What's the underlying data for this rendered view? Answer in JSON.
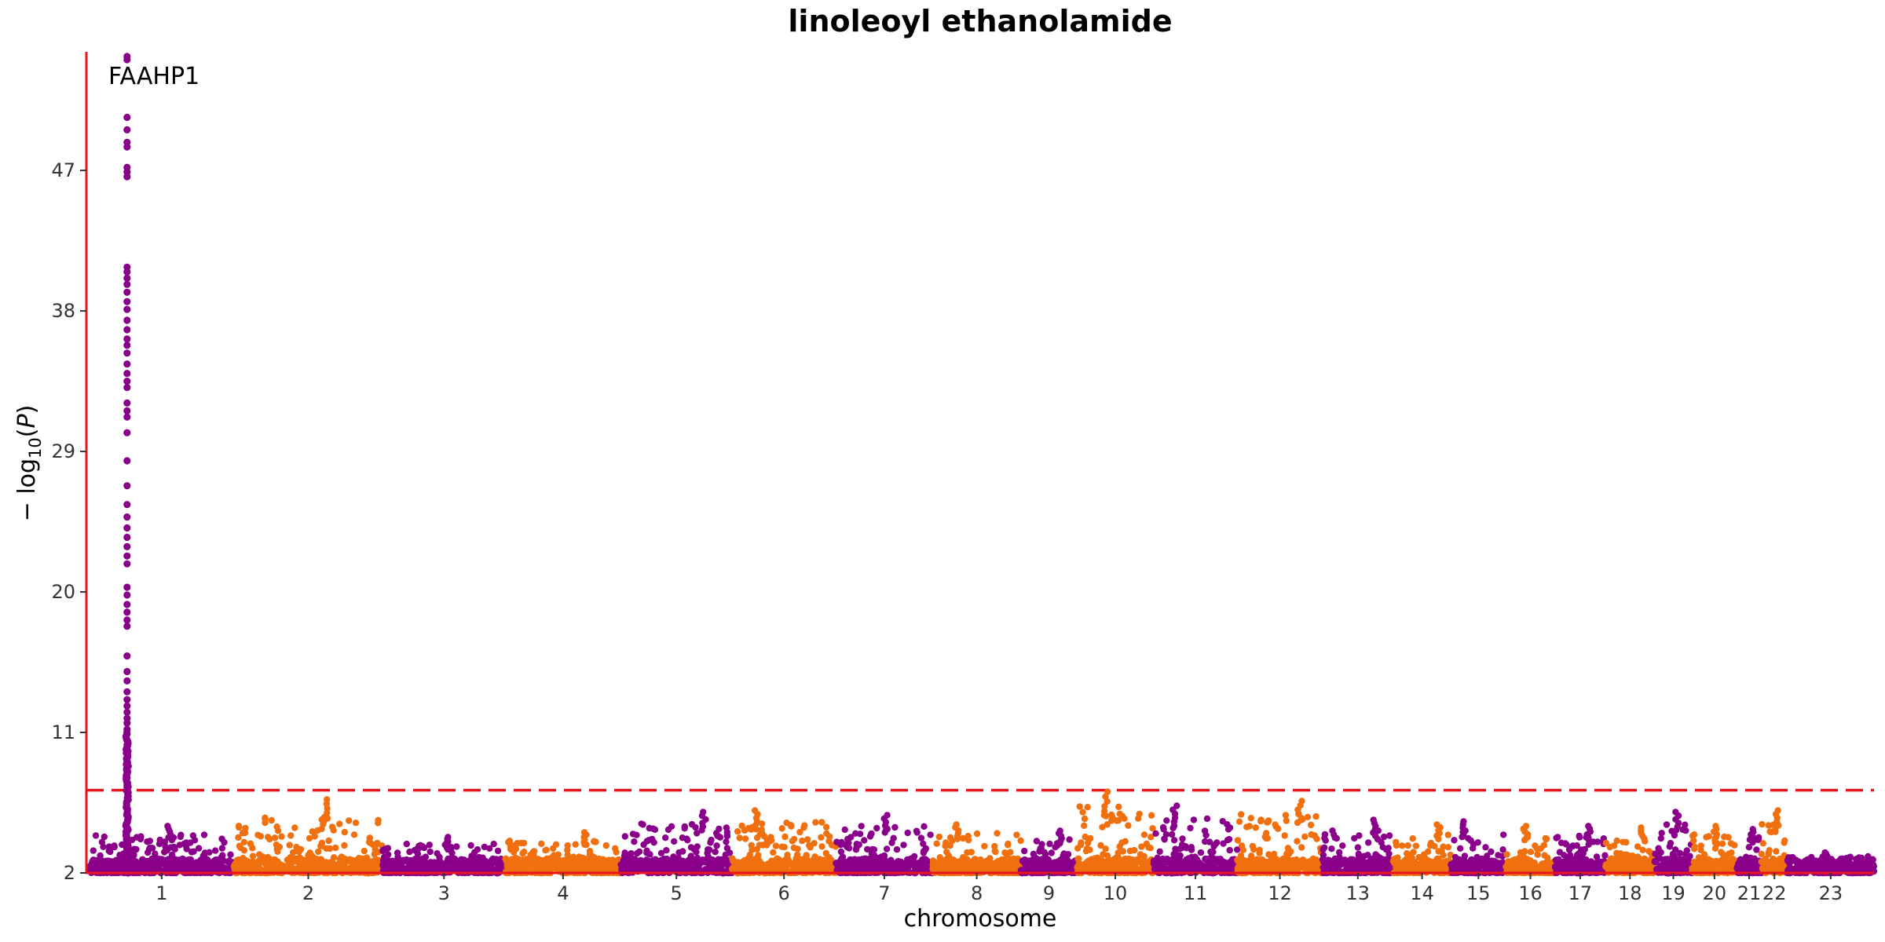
{
  "chart_data": {
    "type": "scatter",
    "subtype": "manhattan",
    "title": "linoleoyl ethanolamide",
    "xlabel": "chromosome",
    "ylabel": "−log10(P)",
    "ylim": [
      2,
      54.5
    ],
    "yticks": [
      2,
      11,
      20,
      29,
      38,
      47
    ],
    "threshold": 7.3,
    "threshold_style": "dashed",
    "grid": false,
    "colors": {
      "odd": "#8b008b",
      "even": "#f07010",
      "axis": "#e8151b",
      "threshold": "#e8151b"
    },
    "chromosomes": [
      {
        "label": "1",
        "length": 1.0,
        "peak": 5.0
      },
      {
        "label": "2",
        "length": 1.03,
        "peak": 6.7
      },
      {
        "label": "3",
        "length": 0.85,
        "peak": 4.3
      },
      {
        "label": "4",
        "length": 0.8,
        "peak": 4.6
      },
      {
        "label": "5",
        "length": 0.77,
        "peak": 5.9
      },
      {
        "label": "6",
        "length": 0.72,
        "peak": 6.0
      },
      {
        "label": "7",
        "length": 0.67,
        "peak": 5.7
      },
      {
        "label": "8",
        "length": 0.61,
        "peak": 5.1
      },
      {
        "label": "9",
        "length": 0.39,
        "peak": 4.7
      },
      {
        "label": "10",
        "length": 0.53,
        "peak": 7.2
      },
      {
        "label": "11",
        "length": 0.58,
        "peak": 6.3
      },
      {
        "label": "12",
        "length": 0.59,
        "peak": 6.6
      },
      {
        "label": "13",
        "length": 0.49,
        "peak": 5.4
      },
      {
        "label": "14",
        "length": 0.4,
        "peak": 5.1
      },
      {
        "label": "15",
        "length": 0.38,
        "peak": 5.3
      },
      {
        "label": "16",
        "length": 0.34,
        "peak": 5.0
      },
      {
        "label": "17",
        "length": 0.35,
        "peak": 5.0
      },
      {
        "label": "18",
        "length": 0.34,
        "peak": 4.9
      },
      {
        "label": "19",
        "length": 0.26,
        "peak": 5.9
      },
      {
        "label": "20",
        "length": 0.31,
        "peak": 5.0
      },
      {
        "label": "21",
        "length": 0.17,
        "peak": 4.8
      },
      {
        "label": "22",
        "length": 0.18,
        "peak": 6.0
      },
      {
        "label": "23",
        "length": 0.6,
        "peak": 3.3
      }
    ],
    "peak_locus": {
      "label": "FAAHP1",
      "chromosome": "1",
      "position_fraction": 0.26,
      "max_neglog10p": 54.3,
      "values": [
        54.3,
        54.1,
        50.4,
        49.6,
        48.8,
        48.5,
        47.2,
        46.9,
        46.6,
        40.8,
        40.5,
        40.1,
        39.7,
        39.2,
        38.6,
        38.1,
        37.4,
        36.8,
        36.2,
        35.8,
        35.3,
        34.6,
        34.0,
        33.5,
        33.1,
        32.1,
        31.6,
        31.2,
        30.2,
        28.4,
        26.8,
        25.6,
        24.8,
        24.1,
        23.5,
        22.9,
        22.3,
        21.8,
        20.3,
        19.8,
        19.2,
        18.7,
        18.2,
        17.8,
        15.9,
        14.9,
        14.3,
        13.6,
        13.1,
        12.7,
        12.3,
        11.9,
        11.6,
        11.2,
        10.9,
        10.5,
        10.2,
        9.9,
        9.6,
        9.3,
        9.0,
        8.7,
        8.4,
        8.1,
        7.8,
        7.5
      ]
    }
  }
}
